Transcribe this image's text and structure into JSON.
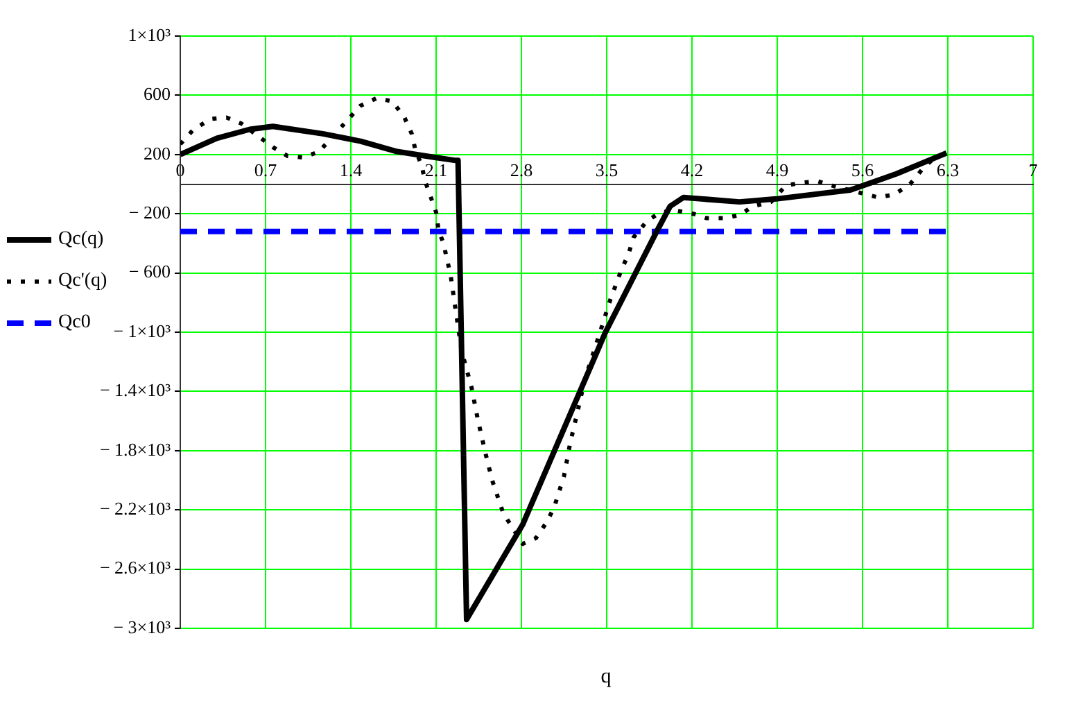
{
  "chart_data": {
    "type": "line",
    "xlabel": "q",
    "xlim": [
      0,
      7
    ],
    "xticks": [
      0,
      0.7,
      1.4,
      2.1,
      2.8,
      3.5,
      4.2,
      4.9,
      5.6,
      6.3,
      7
    ],
    "ylim": [
      -3000,
      1000
    ],
    "yticks": [
      {
        "value": 1000,
        "label": "1×10³"
      },
      600,
      200,
      {
        "value": -200,
        "label": "− 200"
      },
      {
        "value": -600,
        "label": "− 600"
      },
      {
        "value": -1000,
        "label": "− 1×10³"
      },
      {
        "value": -1400,
        "label": "− 1.4×10³"
      },
      {
        "value": -1800,
        "label": "− 1.8×10³"
      },
      {
        "value": -2200,
        "label": "− 2.2×10³"
      },
      {
        "value": -2600,
        "label": "− 2.6×10³"
      },
      {
        "value": -3000,
        "label": "− 3×10³"
      }
    ],
    "grid": true,
    "legend": "left",
    "marker": "none",
    "series": [
      {
        "name": "Qc(q)",
        "color": "#000000",
        "line_style": "solid",
        "x": [
          0,
          0.3,
          0.57,
          0.76,
          1.17,
          1.48,
          1.78,
          2.09,
          2.26,
          2.28,
          2.35,
          2.81,
          3.49,
          3.91,
          4.02,
          4.13,
          4.59,
          4.89,
          5.5,
          5.88,
          6.29
        ],
        "values": [
          200,
          310,
          370,
          390,
          340,
          290,
          220,
          180,
          160,
          160,
          -2940,
          -2300,
          -1000,
          -320,
          -150,
          -90,
          -120,
          -100,
          -40,
          70,
          210
        ]
      },
      {
        "name": "Qc'(q)",
        "color": "#000000",
        "line_style": "dotted",
        "x": [
          0,
          0.11,
          0.25,
          0.38,
          0.5,
          0.63,
          0.76,
          0.88,
          1.01,
          1.14,
          1.37,
          1.48,
          1.61,
          1.74,
          1.84,
          1.9,
          1.93,
          1.98,
          2.01,
          2.1,
          2.12,
          2.16,
          2.22,
          2.26,
          2.31,
          2.39,
          2.44,
          2.5,
          2.56,
          2.65,
          2.81,
          2.92,
          3.01,
          3.07,
          3.15,
          3.2,
          3.26,
          3.32,
          3.43,
          3.53,
          3.62,
          3.68,
          3.72,
          3.83,
          3.94,
          4.08,
          4.21,
          4.32,
          4.46,
          4.59,
          4.7,
          4.85,
          4.97,
          5.1,
          5.23,
          5.35,
          5.73,
          5.86,
          5.99,
          6.1,
          6.22
        ],
        "values": [
          270,
          370,
          440,
          450,
          410,
          330,
          250,
          190,
          180,
          220,
          430,
          530,
          580,
          560,
          450,
          340,
          230,
          130,
          20,
          -190,
          -310,
          -400,
          -620,
          -850,
          -1130,
          -1370,
          -1580,
          -1800,
          -2000,
          -2220,
          -2430,
          -2390,
          -2280,
          -2180,
          -1970,
          -1750,
          -1540,
          -1320,
          -1040,
          -780,
          -580,
          -470,
          -360,
          -250,
          -190,
          -180,
          -200,
          -230,
          -230,
          -210,
          -150,
          -120,
          -10,
          10,
          20,
          -10,
          -90,
          -70,
          0,
          110,
          200
        ]
      },
      {
        "name": "Qc0",
        "color": "#0000ff",
        "line_style": "dashed",
        "x": [
          0,
          6.3
        ],
        "values": [
          -320,
          -320
        ]
      }
    ]
  }
}
